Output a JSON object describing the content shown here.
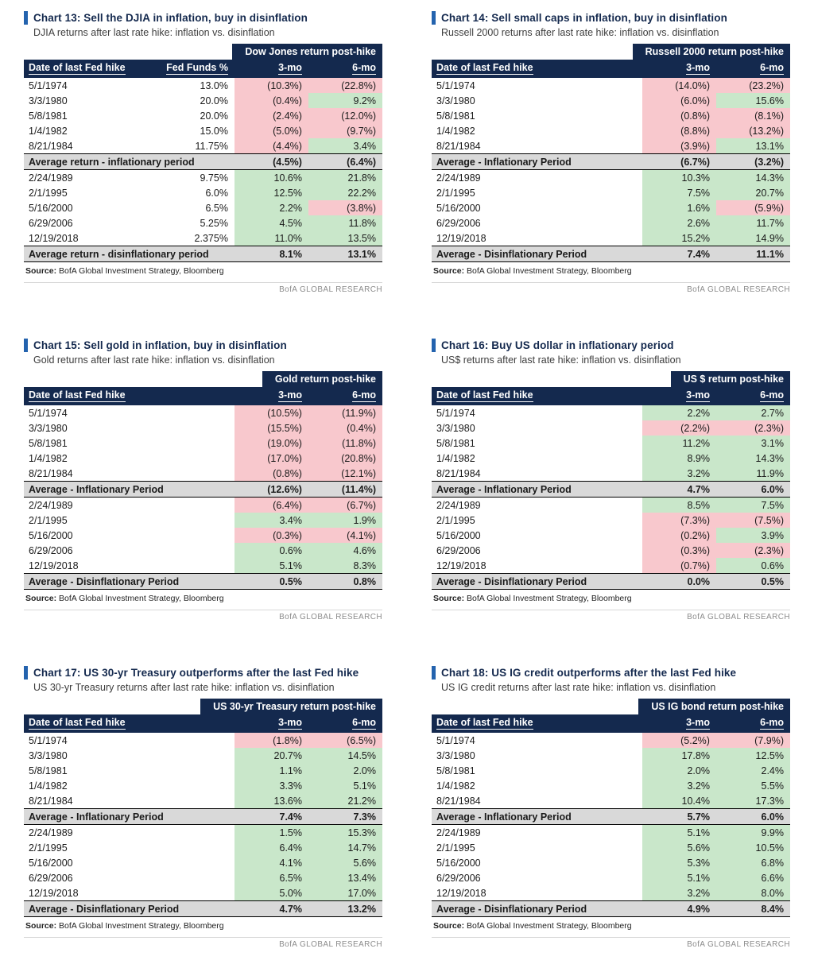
{
  "page": {
    "source_label": "Source:",
    "source_text": "BofA Global Investment Strategy, Bloomberg",
    "brand": "BofA GLOBAL RESEARCH"
  },
  "colors": {
    "header_bg": "#14294E",
    "accent": "#2463AE",
    "positive": "#C9E7CA",
    "negative": "#F8C8CD",
    "average_bg": "#D9D9D9",
    "brand_text": "#8C8C8C"
  },
  "chart_data": [
    {
      "type": "table",
      "label": "Chart 13:",
      "title": "Sell the DJIA in inflation, buy in disinflation",
      "subtitle": "DJIA returns after last rate hike: inflation vs. disinflation",
      "band_title": "Dow Jones return post-hike",
      "columns": [
        "Date of last Fed hike",
        "Fed Funds %",
        "3-mo",
        "6-mo"
      ],
      "rows": [
        {
          "cells": [
            "5/1/1974",
            "13.0%",
            "(10.3%)",
            "(22.8%)"
          ],
          "colors": [
            "",
            "",
            "neg",
            "neg"
          ]
        },
        {
          "cells": [
            "3/3/1980",
            "20.0%",
            "(0.4%)",
            "9.2%"
          ],
          "colors": [
            "",
            "",
            "neg",
            "pos"
          ]
        },
        {
          "cells": [
            "5/8/1981",
            "20.0%",
            "(2.4%)",
            "(12.0%)"
          ],
          "colors": [
            "",
            "",
            "neg",
            "neg"
          ]
        },
        {
          "cells": [
            "1/4/1982",
            "15.0%",
            "(5.0%)",
            "(9.7%)"
          ],
          "colors": [
            "",
            "",
            "neg",
            "neg"
          ]
        },
        {
          "cells": [
            "8/21/1984",
            "11.75%",
            "(4.4%)",
            "3.4%"
          ],
          "colors": [
            "",
            "",
            "neg",
            "pos"
          ]
        },
        {
          "cells": [
            "Average return - inflationary period",
            "(4.5%)",
            "(6.4%)"
          ],
          "average": true
        },
        {
          "cells": [
            "2/24/1989",
            "9.75%",
            "10.6%",
            "21.8%"
          ],
          "colors": [
            "",
            "",
            "pos",
            "pos"
          ]
        },
        {
          "cells": [
            "2/1/1995",
            "6.0%",
            "12.5%",
            "22.2%"
          ],
          "colors": [
            "",
            "",
            "pos",
            "pos"
          ]
        },
        {
          "cells": [
            "5/16/2000",
            "6.5%",
            "2.2%",
            "(3.8%)"
          ],
          "colors": [
            "",
            "",
            "pos",
            "neg"
          ]
        },
        {
          "cells": [
            "6/29/2006",
            "5.25%",
            "4.5%",
            "11.8%"
          ],
          "colors": [
            "",
            "",
            "pos",
            "pos"
          ]
        },
        {
          "cells": [
            "12/19/2018",
            "2.375%",
            "11.0%",
            "13.5%"
          ],
          "colors": [
            "",
            "",
            "pos",
            "pos"
          ]
        },
        {
          "cells": [
            "Average return - disinflationary period",
            "8.1%",
            "13.1%"
          ],
          "average": true
        }
      ]
    },
    {
      "type": "table",
      "label": "Chart 14:",
      "title": "Sell small caps in inflation, buy in disinflation",
      "subtitle": "Russell 2000 returns after last rate hike: inflation vs. disinflation",
      "band_title": "Russell 2000 return post-hike",
      "columns": [
        "Date of last Fed hike",
        "3-mo",
        "6-mo"
      ],
      "rows": [
        {
          "cells": [
            "5/1/1974",
            "(14.0%)",
            "(23.2%)"
          ],
          "colors": [
            "",
            "neg",
            "neg"
          ]
        },
        {
          "cells": [
            "3/3/1980",
            "(6.0%)",
            "15.6%"
          ],
          "colors": [
            "",
            "neg",
            "pos"
          ]
        },
        {
          "cells": [
            "5/8/1981",
            "(0.8%)",
            "(8.1%)"
          ],
          "colors": [
            "",
            "neg",
            "neg"
          ]
        },
        {
          "cells": [
            "1/4/1982",
            "(8.8%)",
            "(13.2%)"
          ],
          "colors": [
            "",
            "neg",
            "neg"
          ]
        },
        {
          "cells": [
            "8/21/1984",
            "(3.9%)",
            "13.1%"
          ],
          "colors": [
            "",
            "neg",
            "pos"
          ]
        },
        {
          "cells": [
            "Average - Inflationary Period",
            "(6.7%)",
            "(3.2%)"
          ],
          "average": true
        },
        {
          "cells": [
            "2/24/1989",
            "10.3%",
            "14.3%"
          ],
          "colors": [
            "",
            "pos",
            "pos"
          ]
        },
        {
          "cells": [
            "2/1/1995",
            "7.5%",
            "20.7%"
          ],
          "colors": [
            "",
            "pos",
            "pos"
          ]
        },
        {
          "cells": [
            "5/16/2000",
            "1.6%",
            "(5.9%)"
          ],
          "colors": [
            "",
            "pos",
            "neg"
          ]
        },
        {
          "cells": [
            "6/29/2006",
            "2.6%",
            "11.7%"
          ],
          "colors": [
            "",
            "pos",
            "pos"
          ]
        },
        {
          "cells": [
            "12/19/2018",
            "15.2%",
            "14.9%"
          ],
          "colors": [
            "",
            "pos",
            "pos"
          ]
        },
        {
          "cells": [
            "Average - Disinflationary Period",
            "7.4%",
            "11.1%"
          ],
          "average": true
        }
      ]
    },
    {
      "type": "table",
      "label": "Chart 15:",
      "title": "Sell gold in inflation, buy in disinflation",
      "subtitle": "Gold returns after last rate hike: inflation vs. disinflation",
      "band_title": "Gold return post-hike",
      "columns": [
        "Date of last Fed hike",
        "3-mo",
        "6-mo"
      ],
      "rows": [
        {
          "cells": [
            "5/1/1974",
            "(10.5%)",
            "(11.9%)"
          ],
          "colors": [
            "",
            "neg",
            "neg"
          ]
        },
        {
          "cells": [
            "3/3/1980",
            "(15.5%)",
            "(0.4%)"
          ],
          "colors": [
            "",
            "neg",
            "neg"
          ]
        },
        {
          "cells": [
            "5/8/1981",
            "(19.0%)",
            "(11.8%)"
          ],
          "colors": [
            "",
            "neg",
            "neg"
          ]
        },
        {
          "cells": [
            "1/4/1982",
            "(17.0%)",
            "(20.8%)"
          ],
          "colors": [
            "",
            "neg",
            "neg"
          ]
        },
        {
          "cells": [
            "8/21/1984",
            "(0.8%)",
            "(12.1%)"
          ],
          "colors": [
            "",
            "neg",
            "neg"
          ]
        },
        {
          "cells": [
            "Average - Inflationary Period",
            "(12.6%)",
            "(11.4%)"
          ],
          "average": true
        },
        {
          "cells": [
            "2/24/1989",
            "(6.4%)",
            "(6.7%)"
          ],
          "colors": [
            "",
            "neg",
            "neg"
          ]
        },
        {
          "cells": [
            "2/1/1995",
            "3.4%",
            "1.9%"
          ],
          "colors": [
            "",
            "pos",
            "pos"
          ]
        },
        {
          "cells": [
            "5/16/2000",
            "(0.3%)",
            "(4.1%)"
          ],
          "colors": [
            "",
            "neg",
            "neg"
          ]
        },
        {
          "cells": [
            "6/29/2006",
            "0.6%",
            "4.6%"
          ],
          "colors": [
            "",
            "pos",
            "pos"
          ]
        },
        {
          "cells": [
            "12/19/2018",
            "5.1%",
            "8.3%"
          ],
          "colors": [
            "",
            "pos",
            "pos"
          ]
        },
        {
          "cells": [
            "Average - Disinflationary Period",
            "0.5%",
            "0.8%"
          ],
          "average": true
        }
      ]
    },
    {
      "type": "table",
      "label": "Chart 16:",
      "title": "Buy US dollar in inflationary period",
      "subtitle": "US$ returns after last rate hike: inflation vs. disinflation",
      "band_title": "US $ return post-hike",
      "columns": [
        "Date of last Fed hike",
        "3-mo",
        "6-mo"
      ],
      "rows": [
        {
          "cells": [
            "5/1/1974",
            "2.2%",
            "2.7%"
          ],
          "colors": [
            "",
            "pos",
            "pos"
          ]
        },
        {
          "cells": [
            "3/3/1980",
            "(2.2%)",
            "(2.3%)"
          ],
          "colors": [
            "",
            "neg",
            "neg"
          ]
        },
        {
          "cells": [
            "5/8/1981",
            "11.2%",
            "3.1%"
          ],
          "colors": [
            "",
            "pos",
            "pos"
          ]
        },
        {
          "cells": [
            "1/4/1982",
            "8.9%",
            "14.3%"
          ],
          "colors": [
            "",
            "pos",
            "pos"
          ]
        },
        {
          "cells": [
            "8/21/1984",
            "3.2%",
            "11.9%"
          ],
          "colors": [
            "",
            "pos",
            "pos"
          ]
        },
        {
          "cells": [
            "Average - Inflationary Period",
            "4.7%",
            "6.0%"
          ],
          "average": true
        },
        {
          "cells": [
            "2/24/1989",
            "8.5%",
            "7.5%"
          ],
          "colors": [
            "",
            "pos",
            "pos"
          ]
        },
        {
          "cells": [
            "2/1/1995",
            "(7.3%)",
            "(7.5%)"
          ],
          "colors": [
            "",
            "neg",
            "neg"
          ]
        },
        {
          "cells": [
            "5/16/2000",
            "(0.2%)",
            "3.9%"
          ],
          "colors": [
            "",
            "neg",
            "pos"
          ]
        },
        {
          "cells": [
            "6/29/2006",
            "(0.3%)",
            "(2.3%)"
          ],
          "colors": [
            "",
            "neg",
            "neg"
          ]
        },
        {
          "cells": [
            "12/19/2018",
            "(0.7%)",
            "0.6%"
          ],
          "colors": [
            "",
            "neg",
            "pos"
          ]
        },
        {
          "cells": [
            "Average - Disinflationary Period",
            "0.0%",
            "0.5%"
          ],
          "average": true
        }
      ]
    },
    {
      "type": "table",
      "label": "Chart 17:",
      "title": "US 30-yr Treasury outperforms after the last Fed hike",
      "subtitle": "US 30-yr Treasury returns after last rate hike: inflation vs. disinflation",
      "band_title": "US 30-yr Treasury return post-hike",
      "columns": [
        "Date of last Fed hike",
        "3-mo",
        "6-mo"
      ],
      "rows": [
        {
          "cells": [
            "5/1/1974",
            "(1.8%)",
            "(6.5%)"
          ],
          "colors": [
            "",
            "neg",
            "neg"
          ]
        },
        {
          "cells": [
            "3/3/1980",
            "20.7%",
            "14.5%"
          ],
          "colors": [
            "",
            "pos",
            "pos"
          ]
        },
        {
          "cells": [
            "5/8/1981",
            "1.1%",
            "2.0%"
          ],
          "colors": [
            "",
            "pos",
            "pos"
          ]
        },
        {
          "cells": [
            "1/4/1982",
            "3.3%",
            "5.1%"
          ],
          "colors": [
            "",
            "pos",
            "pos"
          ]
        },
        {
          "cells": [
            "8/21/1984",
            "13.6%",
            "21.2%"
          ],
          "colors": [
            "",
            "pos",
            "pos"
          ]
        },
        {
          "cells": [
            "Average - Inflationary Period",
            "7.4%",
            "7.3%"
          ],
          "average": true
        },
        {
          "cells": [
            "2/24/1989",
            "1.5%",
            "15.3%"
          ],
          "colors": [
            "",
            "pos",
            "pos"
          ]
        },
        {
          "cells": [
            "2/1/1995",
            "6.4%",
            "14.7%"
          ],
          "colors": [
            "",
            "pos",
            "pos"
          ]
        },
        {
          "cells": [
            "5/16/2000",
            "4.1%",
            "5.6%"
          ],
          "colors": [
            "",
            "pos",
            "pos"
          ]
        },
        {
          "cells": [
            "6/29/2006",
            "6.5%",
            "13.4%"
          ],
          "colors": [
            "",
            "pos",
            "pos"
          ]
        },
        {
          "cells": [
            "12/19/2018",
            "5.0%",
            "17.0%"
          ],
          "colors": [
            "",
            "pos",
            "pos"
          ]
        },
        {
          "cells": [
            "Average - Disinflationary Period",
            "4.7%",
            "13.2%"
          ],
          "average": true
        }
      ]
    },
    {
      "type": "table",
      "label": "Chart 18:",
      "title": "US IG credit outperforms after the last Fed hike",
      "subtitle": "US IG credit returns after last rate hike: inflation vs. disinflation",
      "band_title": "US IG bond return post-hike",
      "columns": [
        "Date of last Fed hike",
        "3-mo",
        "6-mo"
      ],
      "rows": [
        {
          "cells": [
            "5/1/1974",
            "(5.2%)",
            "(7.9%)"
          ],
          "colors": [
            "",
            "neg",
            "neg"
          ]
        },
        {
          "cells": [
            "3/3/1980",
            "17.8%",
            "12.5%"
          ],
          "colors": [
            "",
            "pos",
            "pos"
          ]
        },
        {
          "cells": [
            "5/8/1981",
            "2.0%",
            "2.4%"
          ],
          "colors": [
            "",
            "pos",
            "pos"
          ]
        },
        {
          "cells": [
            "1/4/1982",
            "3.2%",
            "5.5%"
          ],
          "colors": [
            "",
            "pos",
            "pos"
          ]
        },
        {
          "cells": [
            "8/21/1984",
            "10.4%",
            "17.3%"
          ],
          "colors": [
            "",
            "pos",
            "pos"
          ]
        },
        {
          "cells": [
            "Average - Inflationary Period",
            "5.7%",
            "6.0%"
          ],
          "average": true
        },
        {
          "cells": [
            "2/24/1989",
            "5.1%",
            "9.9%"
          ],
          "colors": [
            "",
            "pos",
            "pos"
          ]
        },
        {
          "cells": [
            "2/1/1995",
            "5.6%",
            "10.5%"
          ],
          "colors": [
            "",
            "pos",
            "pos"
          ]
        },
        {
          "cells": [
            "5/16/2000",
            "5.3%",
            "6.8%"
          ],
          "colors": [
            "",
            "pos",
            "pos"
          ]
        },
        {
          "cells": [
            "6/29/2006",
            "5.1%",
            "6.6%"
          ],
          "colors": [
            "",
            "pos",
            "pos"
          ]
        },
        {
          "cells": [
            "12/19/2018",
            "3.2%",
            "8.0%"
          ],
          "colors": [
            "",
            "pos",
            "pos"
          ]
        },
        {
          "cells": [
            "Average - Disinflationary Period",
            "4.9%",
            "8.4%"
          ],
          "average": true
        }
      ]
    }
  ]
}
